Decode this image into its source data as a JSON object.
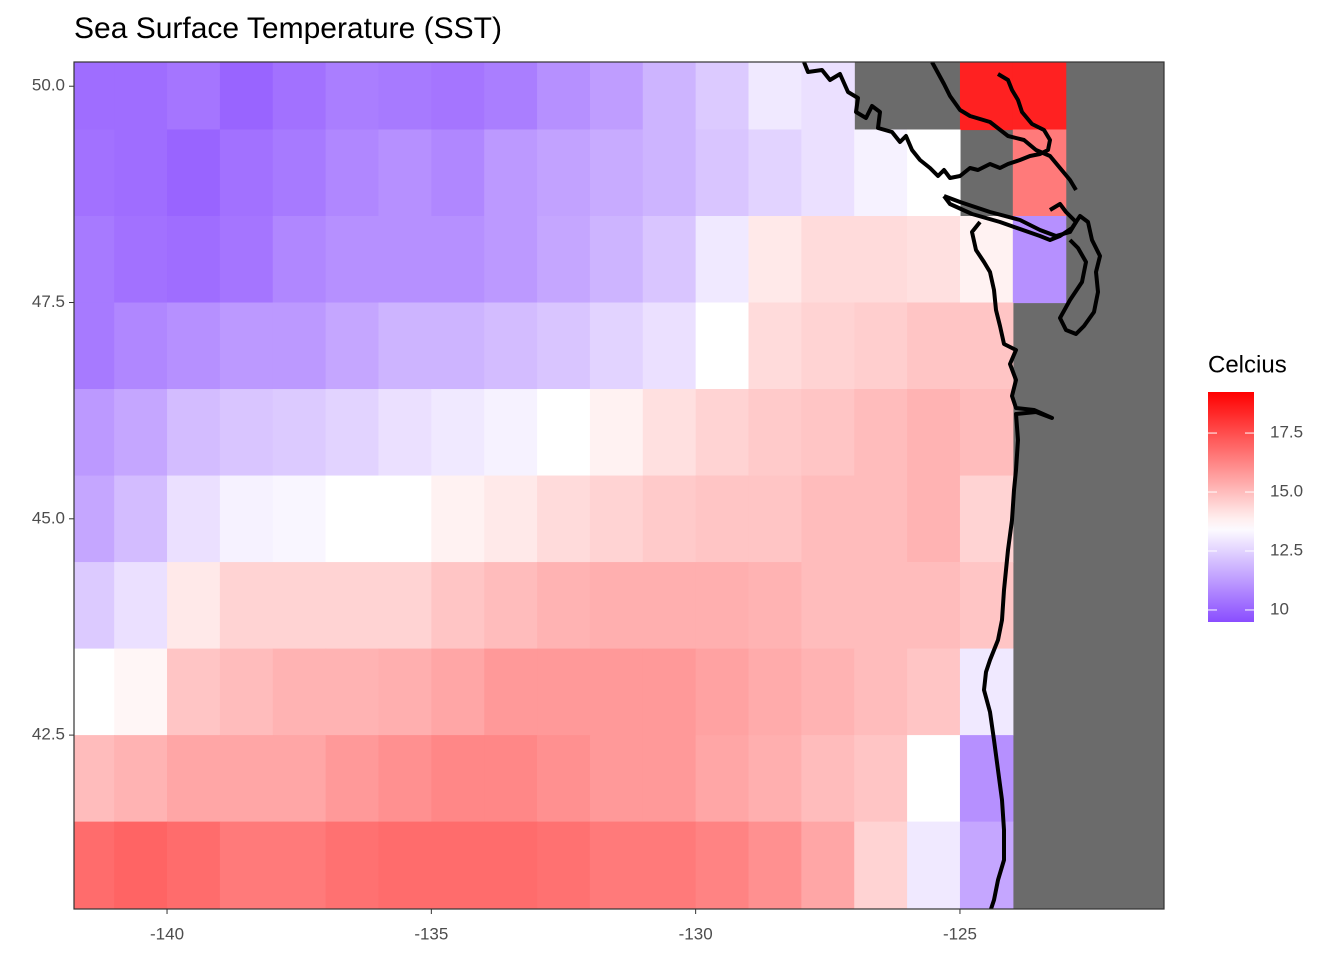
{
  "chart_data": {
    "type": "heatmap",
    "title": "Sea Surface Temperature (SST)",
    "legend_title": "Celcius",
    "xlim": [
      -141.76,
      -121.14
    ],
    "ylim": [
      40.49,
      50.28
    ],
    "xticks": [
      -140,
      -135,
      -130,
      -125
    ],
    "yticks": [
      {
        "value": 50,
        "label": "50.0"
      },
      47.5,
      {
        "value": 45,
        "label": "45.0"
      },
      42.5
    ],
    "x": [
      -141.5,
      -140.5,
      -139.5,
      -138.5,
      -137.5,
      -136.5,
      -135.5,
      -134.5,
      -133.5,
      -132.5,
      -131.5,
      -130.5,
      -129.5,
      -128.5,
      -127.5,
      -126.5,
      -125.5,
      -124.5,
      -123.5,
      -122.5,
      -121.5
    ],
    "y": [
      50,
      49,
      48,
      47,
      46,
      45,
      44,
      43,
      42,
      41
    ],
    "z": [
      [
        10.2,
        10.2,
        10.4,
        10.0,
        10.3,
        10.6,
        10.5,
        10.4,
        10.6,
        11,
        11.3,
        11.8,
        12.3,
        13,
        12.8,
        null,
        null,
        18.5,
        18.5,
        null,
        null
      ],
      [
        10.3,
        10.2,
        10.0,
        10.3,
        10.5,
        10.8,
        11,
        10.8,
        11.2,
        11.4,
        11.6,
        11.8,
        12.2,
        12.5,
        12.8,
        13.2,
        13.5,
        null,
        16.5,
        null,
        null
      ],
      [
        10.5,
        10.3,
        10.2,
        10.4,
        10.8,
        11,
        11,
        11,
        11.2,
        11.5,
        11.8,
        12.2,
        13,
        14,
        14.3,
        14.3,
        14.2,
        13.8,
        11,
        null,
        null
      ],
      [
        10.5,
        10.8,
        11,
        11.2,
        11.2,
        11.5,
        11.8,
        11.8,
        12,
        12.2,
        12.5,
        12.8,
        13.5,
        14.3,
        14.5,
        14.6,
        14.8,
        14.8,
        null,
        null,
        null
      ],
      [
        11.2,
        11.5,
        12,
        12.2,
        12.3,
        12.5,
        12.8,
        13,
        13.2,
        13.5,
        13.8,
        14.2,
        14.5,
        14.7,
        14.8,
        15,
        15.2,
        15,
        null,
        null,
        null
      ],
      [
        11.5,
        12,
        12.8,
        13.2,
        13.3,
        13.5,
        13.5,
        13.8,
        14,
        14.3,
        14.5,
        14.7,
        14.8,
        14.8,
        15,
        15,
        15.2,
        14.5,
        null,
        null,
        null
      ],
      [
        12.3,
        12.8,
        14,
        14.5,
        14.5,
        14.5,
        14.5,
        14.8,
        15,
        15.2,
        15.3,
        15.3,
        15.3,
        15.2,
        15,
        15,
        15,
        14.8,
        null,
        null,
        null
      ],
      [
        13.5,
        13.7,
        14.8,
        15,
        15.2,
        15.2,
        15.3,
        15.5,
        15.8,
        15.8,
        15.8,
        15.8,
        15.6,
        15.4,
        15.2,
        15,
        14.8,
        13,
        null,
        null,
        null
      ],
      [
        15,
        15.2,
        15.5,
        15.5,
        15.5,
        15.8,
        16,
        16.2,
        16.2,
        16,
        15.8,
        15.8,
        15.5,
        15.3,
        15,
        14.8,
        13.5,
        11,
        null,
        null,
        null
      ],
      [
        16.8,
        17,
        16.8,
        16.5,
        16.5,
        16.7,
        16.8,
        16.8,
        16.8,
        16.7,
        16.5,
        16.5,
        16.3,
        16,
        15.5,
        14.5,
        13,
        11.5,
        null,
        null,
        null
      ]
    ],
    "colors": {
      "low": "#8a4dff",
      "mid": "#ffffff",
      "high": "#ff0000"
    },
    "midpoint": 13.5,
    "zlim": [
      9.49,
      19.24
    ],
    "legend_ticks": [
      10,
      12.5,
      {
        "value": 15,
        "label": "15.0"
      },
      17.5
    ],
    "land_color": "#6b6b6b"
  }
}
